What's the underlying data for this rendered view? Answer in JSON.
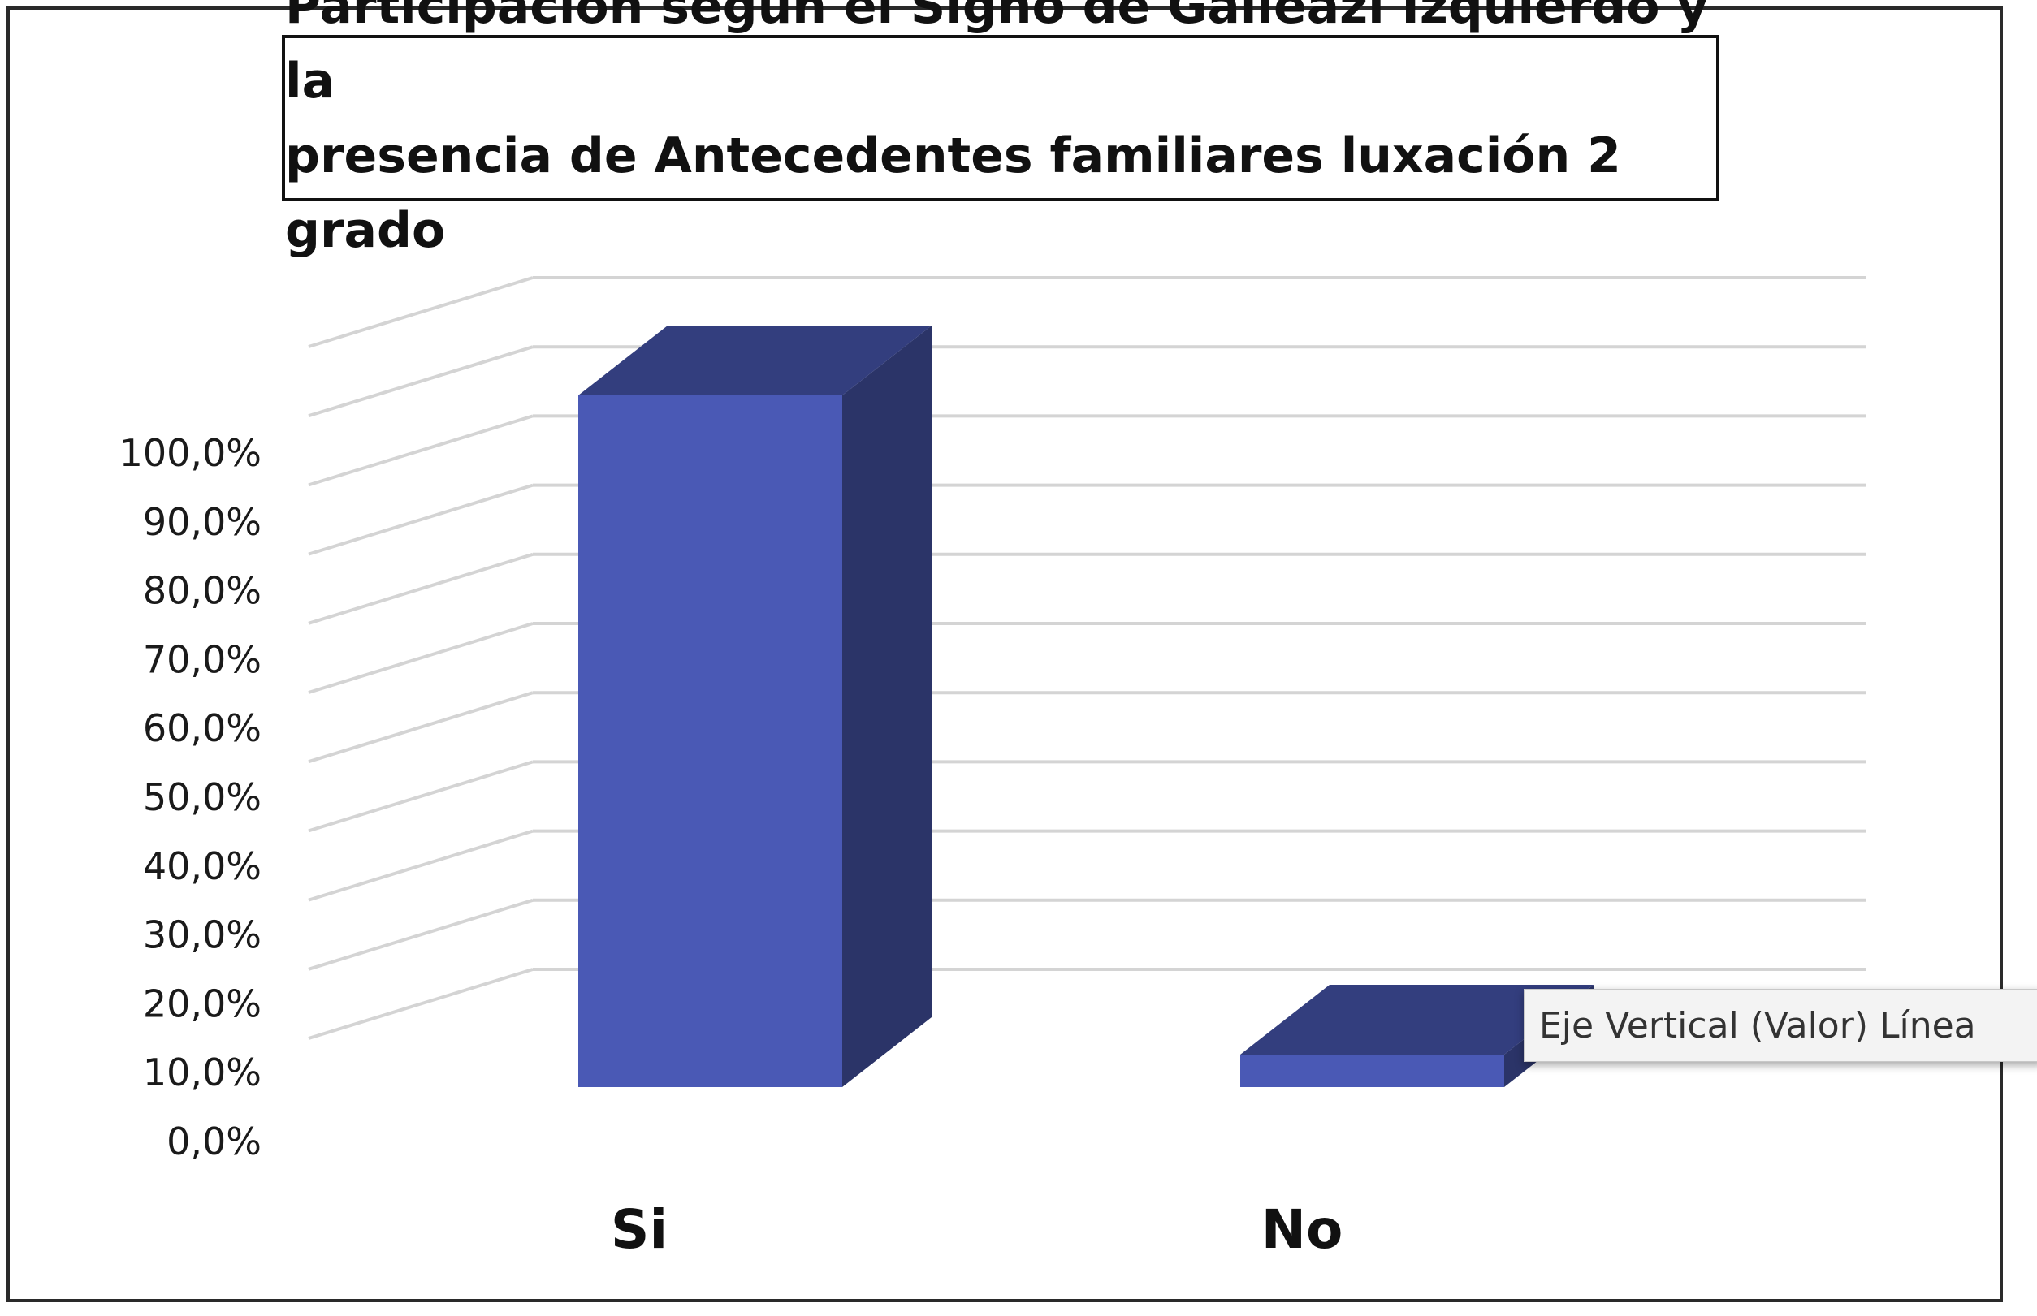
{
  "chart_data": {
    "type": "bar",
    "title_lines": [
      "Participación según el Signo de Galleazi Izquierdo y la",
      "presencia de Antecedentes familiares luxación 2 grado"
    ],
    "categories": [
      "Si",
      "No"
    ],
    "values": [
      100.0,
      0.0
    ],
    "y_ticks": [
      "0,0%",
      "10,0%",
      "20,0%",
      "30,0%",
      "40,0%",
      "50,0%",
      "60,0%",
      "70,0%",
      "80,0%",
      "90,0%",
      "100,0%"
    ],
    "ylim": [
      0,
      100
    ],
    "grid": true,
    "style": "3d-column",
    "colors": {
      "bar_front": "#4a59b5",
      "bar_top": "#333e7e",
      "bar_side": "#2b3468",
      "grid": "#d4d4d4"
    }
  },
  "tooltip": {
    "text": "Eje Vertical (Valor)  Línea"
  }
}
